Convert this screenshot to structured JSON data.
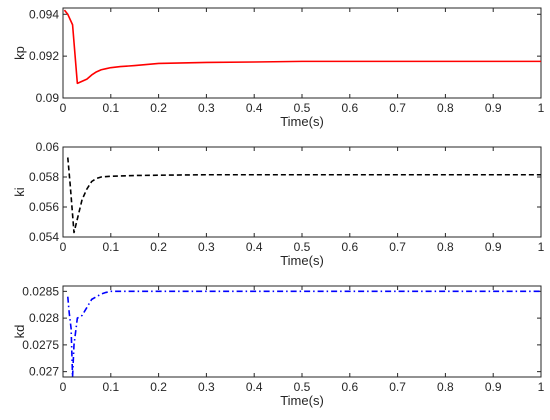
{
  "chart_data": [
    {
      "type": "line",
      "ylabel": "kp",
      "xlabel": "Time(s)",
      "xlim": [
        0,
        1
      ],
      "ylim": [
        0.09,
        0.0943
      ],
      "xticks": [
        "0",
        "0.1",
        "0.2",
        "0.3",
        "0.4",
        "0.5",
        "0.6",
        "0.7",
        "0.8",
        "0.9",
        "1"
      ],
      "yticks": [
        {
          "value": 0.09,
          "label": "0.09"
        },
        {
          "value": 0.092,
          "label": "0.092"
        },
        {
          "value": 0.094,
          "label": "0.094"
        }
      ],
      "grid": false,
      "series": [
        {
          "color": "#ff0000",
          "style": "solid",
          "x": [
            0.003,
            0.01,
            0.02,
            0.03,
            0.04,
            0.05,
            0.06,
            0.07,
            0.08,
            0.09,
            0.1,
            0.12,
            0.15,
            0.2,
            0.3,
            0.4,
            0.5,
            0.7,
            1.0
          ],
          "y": [
            0.0942,
            0.094,
            0.0935,
            0.0907,
            0.0908,
            0.0909,
            0.0911,
            0.09125,
            0.09135,
            0.0914,
            0.09145,
            0.0915,
            0.09155,
            0.09165,
            0.0917,
            0.09172,
            0.09175,
            0.09175,
            0.09175
          ]
        }
      ]
    },
    {
      "type": "line",
      "ylabel": "ki",
      "xlabel": "Time(s)",
      "xlim": [
        0,
        1
      ],
      "ylim": [
        0.054,
        0.06
      ],
      "xticks": [
        "0",
        "0.1",
        "0.2",
        "0.3",
        "0.4",
        "0.5",
        "0.6",
        "0.7",
        "0.8",
        "0.9",
        "1"
      ],
      "yticks": [
        {
          "value": 0.054,
          "label": "0.054"
        },
        {
          "value": 0.056,
          "label": "0.056"
        },
        {
          "value": 0.058,
          "label": "0.058"
        },
        {
          "value": 0.06,
          "label": "0.06"
        }
      ],
      "grid": false,
      "series": [
        {
          "color": "#000000",
          "style": "dashed",
          "x": [
            0.01,
            0.015,
            0.02,
            0.023,
            0.03,
            0.04,
            0.05,
            0.06,
            0.07,
            0.08,
            0.1,
            0.15,
            0.2,
            0.3,
            0.5,
            0.7,
            1.0
          ],
          "y": [
            0.0593,
            0.0575,
            0.0555,
            0.0543,
            0.0552,
            0.0565,
            0.0572,
            0.0577,
            0.0579,
            0.058,
            0.05805,
            0.0581,
            0.05812,
            0.05815,
            0.05815,
            0.05815,
            0.05815
          ]
        }
      ]
    },
    {
      "type": "line",
      "ylabel": "kd",
      "xlabel": "Time(s)",
      "xlim": [
        0,
        1
      ],
      "ylim": [
        0.0269,
        0.0286
      ],
      "xticks": [
        "0",
        "0.1",
        "0.2",
        "0.3",
        "0.4",
        "0.5",
        "0.6",
        "0.7",
        "0.8",
        "0.9",
        "1"
      ],
      "yticks": [
        {
          "value": 0.027,
          "label": "0.027"
        },
        {
          "value": 0.0275,
          "label": "0.0275"
        },
        {
          "value": 0.028,
          "label": "0.028"
        },
        {
          "value": 0.0285,
          "label": "0.0285"
        }
      ],
      "grid": false,
      "series": [
        {
          "color": "#0000ff",
          "style": "dashdot",
          "x": [
            0.01,
            0.013,
            0.017,
            0.02,
            0.023,
            0.03,
            0.04,
            0.05,
            0.06,
            0.07,
            0.08,
            0.09,
            0.1,
            0.12,
            0.15,
            0.2,
            0.3,
            0.5,
            1.0
          ],
          "y": [
            0.0284,
            0.0281,
            0.0278,
            0.0269,
            0.0275,
            0.028,
            0.02805,
            0.0282,
            0.02835,
            0.0284,
            0.02845,
            0.02848,
            0.0285,
            0.0285,
            0.0285,
            0.0285,
            0.0285,
            0.0285,
            0.0285
          ]
        }
      ]
    }
  ]
}
